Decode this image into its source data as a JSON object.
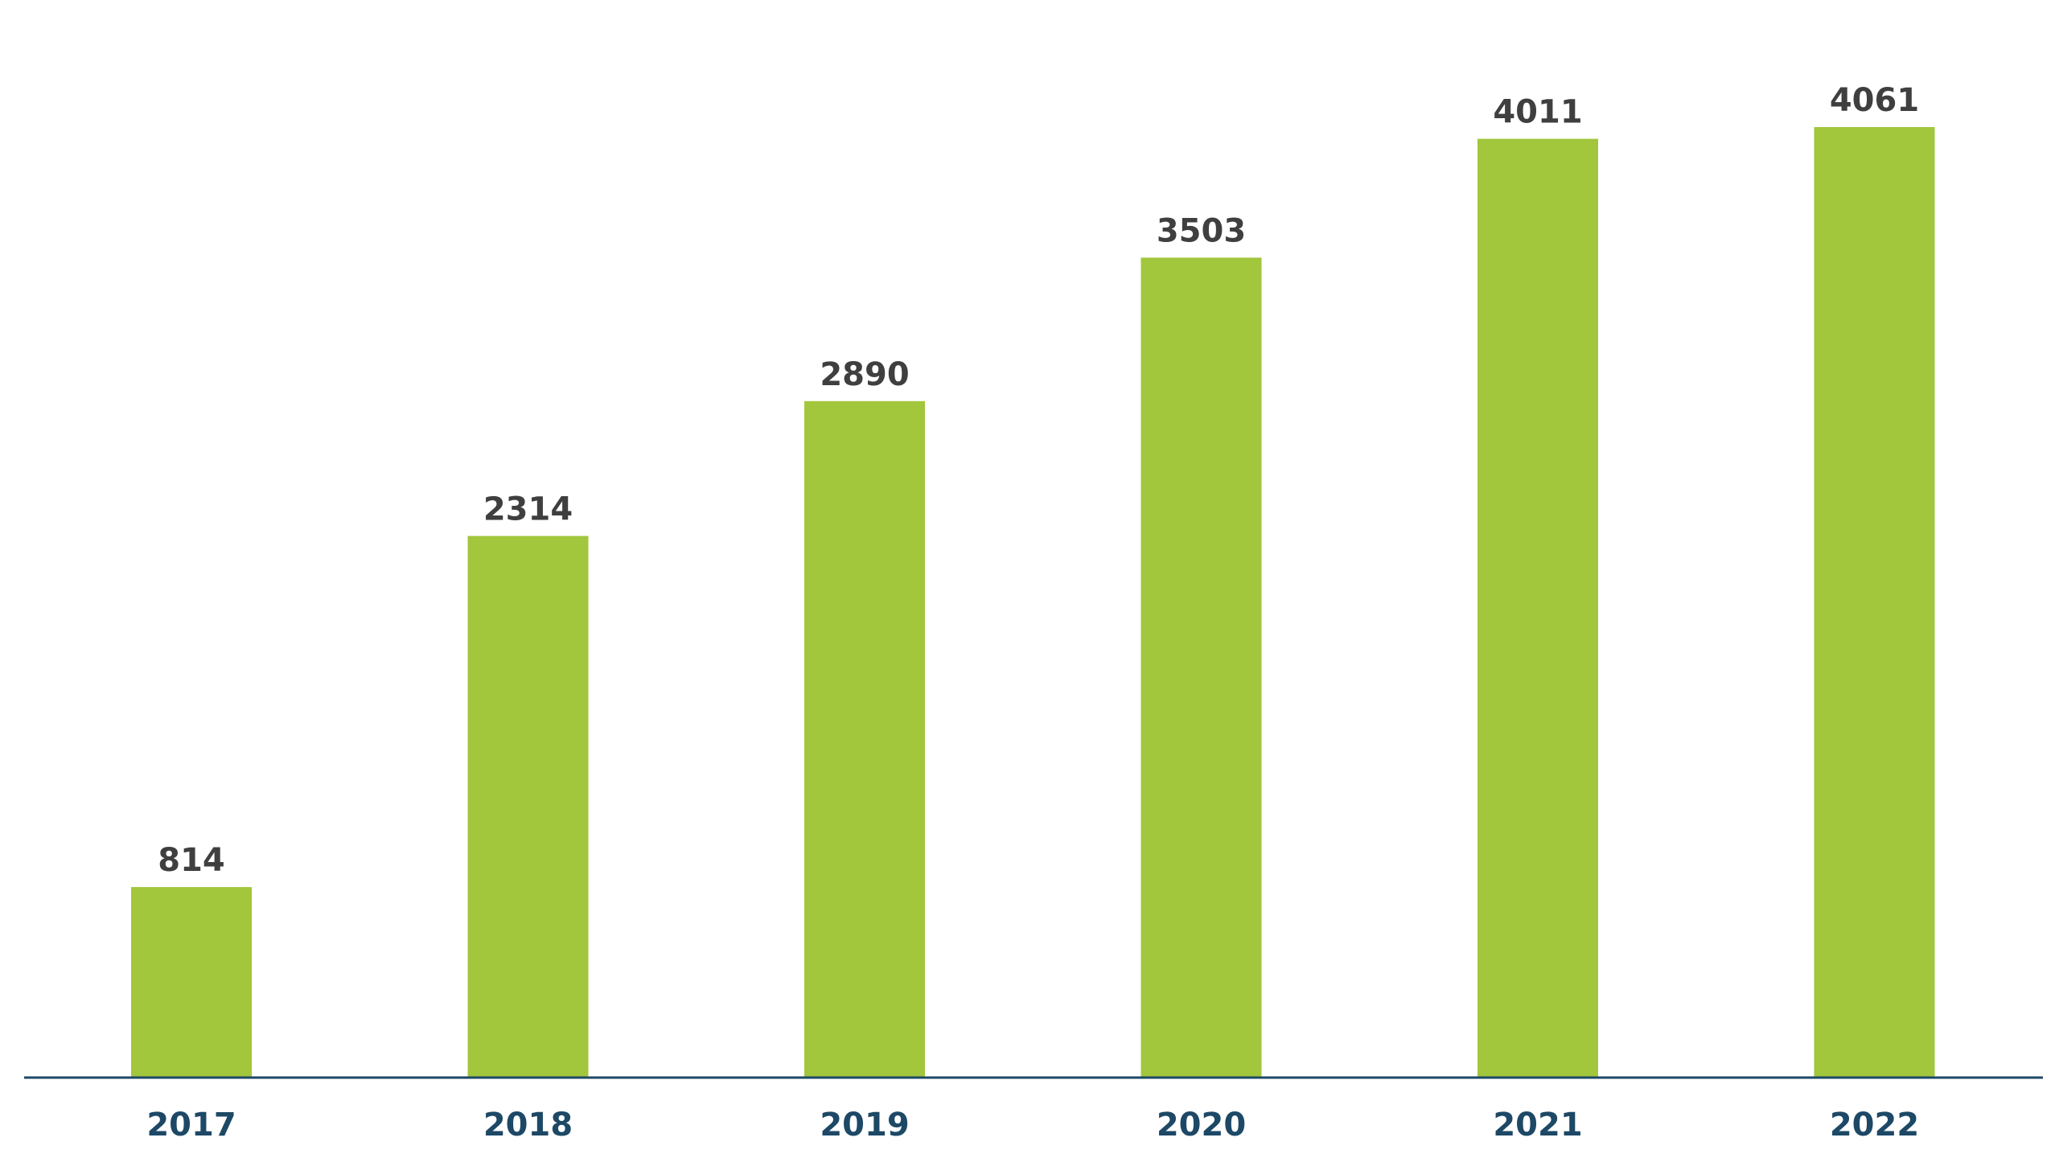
{
  "chart_data": {
    "type": "bar",
    "title": "",
    "xlabel": "",
    "ylabel": "",
    "categories": [
      "2017",
      "2018",
      "2019",
      "2020",
      "2021",
      "2022"
    ],
    "values": [
      814,
      2314,
      2890,
      3503,
      4011,
      4061
    ],
    "value_labels": [
      "814",
      "2314",
      "2890",
      "3503",
      "4011",
      "4061"
    ],
    "ylim": [
      0,
      4500
    ],
    "grid": false,
    "legend": "none",
    "colors": {
      "bar": "#a2c63c",
      "axis": "#1d4866",
      "value_label": "#3f3f3f",
      "tick_label": "#1d4866",
      "background": "#ffffff"
    }
  }
}
